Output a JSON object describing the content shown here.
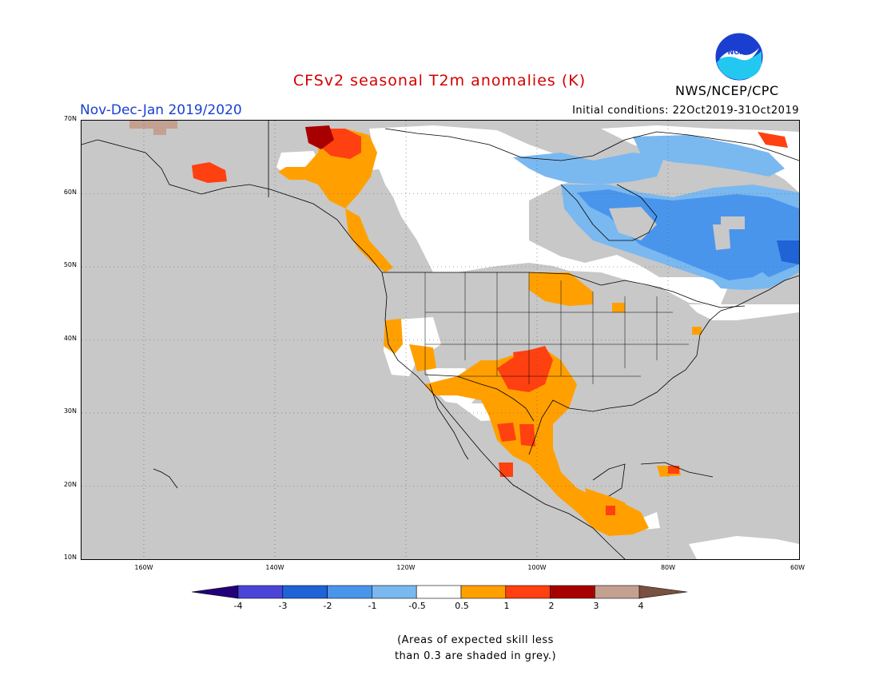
{
  "header": {
    "title": "CFSv2 seasonal T2m anomalies (K)",
    "period": "Nov-Dec-Jan 2019/2020",
    "initial_conditions": "Initial conditions: 22Oct2019-31Oct2019",
    "agency": "NWS/NCEP/CPC",
    "logo_text": "NOAA"
  },
  "map": {
    "lat_labels": [
      "70N",
      "60N",
      "50N",
      "40N",
      "30N",
      "20N",
      "10N"
    ],
    "lon_labels": [
      "160W",
      "140W",
      "120W",
      "100W",
      "80W",
      "60W"
    ],
    "colors": {
      "grey_low_skill": "#c8c8c8",
      "neutral": "#ffffff",
      "minus_half_to_minus_one": "#7ab8f0",
      "minus_one_to_minus_two": "#4a95ec",
      "minus_two_to_minus_three": "#1f63d6",
      "half_to_one": "#ffa000",
      "one_to_two": "#ff4010",
      "two_to_three": "#a80000",
      "three_to_four": "#c4a090"
    }
  },
  "colorbar": {
    "labels": [
      "-4",
      "-3",
      "-2",
      "-1",
      "-0.5",
      "0.5",
      "1",
      "2",
      "3",
      "4"
    ],
    "colors": [
      "#3a12a8",
      "#4a45d8",
      "#1f63d6",
      "#4a95ec",
      "#7ab8f0",
      "#ffffff",
      "#ffa000",
      "#ff4010",
      "#a80000",
      "#c4a090"
    ],
    "end_colors": [
      "#23007a",
      "#7a5040"
    ]
  },
  "note": {
    "line1": "(Areas of expected skill less",
    "line2": "than 0.3 are shaded in grey.)"
  }
}
